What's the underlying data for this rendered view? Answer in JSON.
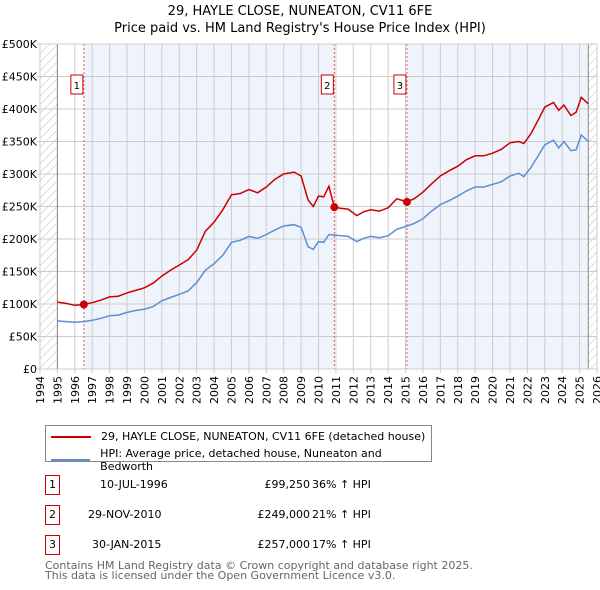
{
  "title": "29, HAYLE CLOSE, NUNEATON, CV11 6FE",
  "subtitle": "Price paid vs. HM Land Registry's House Price Index (HPI)",
  "legend": {
    "property": "29, HAYLE CLOSE, NUNEATON, CV11 6FE (detached house)",
    "hpi": "HPI: Average price, detached house, Nuneaton and Bedworth"
  },
  "sales": [
    {
      "num": "1",
      "date": "10-JUL-1996",
      "price": "£99,250",
      "hpi": "36% ↑ HPI"
    },
    {
      "num": "2",
      "date": "29-NOV-2010",
      "price": "£249,000",
      "hpi": "21% ↑ HPI"
    },
    {
      "num": "3",
      "date": "30-JAN-2015",
      "price": "£257,000",
      "hpi": "17% ↑ HPI"
    }
  ],
  "footer": {
    "line1": "Contains HM Land Registry data © Crown copyright and database right 2025.",
    "line2": "This data is licensed under the Open Government Licence v3.0."
  },
  "chart_data": {
    "type": "line",
    "xlim": [
      1994,
      2026
    ],
    "ylim": [
      0,
      500000
    ],
    "x_ticks": [
      "1994",
      "1995",
      "1996",
      "1997",
      "1998",
      "1999",
      "2000",
      "2001",
      "2002",
      "2003",
      "2004",
      "2005",
      "2006",
      "2007",
      "2008",
      "2009",
      "2010",
      "2011",
      "2012",
      "2013",
      "2014",
      "2015",
      "2016",
      "2017",
      "2018",
      "2019",
      "2020",
      "2021",
      "2022",
      "2023",
      "2024",
      "2025",
      "2026"
    ],
    "y_ticks": [
      {
        "v": 0,
        "label": "£0"
      },
      {
        "v": 50000,
        "label": "£50K"
      },
      {
        "v": 100000,
        "label": "£100K"
      },
      {
        "v": 150000,
        "label": "£150K"
      },
      {
        "v": 200000,
        "label": "£200K"
      },
      {
        "v": 250000,
        "label": "£250K"
      },
      {
        "v": 300000,
        "label": "£300K"
      },
      {
        "v": 350000,
        "label": "£350K"
      },
      {
        "v": 400000,
        "label": "£400K"
      },
      {
        "v": 450000,
        "label": "£450K"
      },
      {
        "v": 500000,
        "label": "£500K"
      }
    ],
    "data_range": [
      1995,
      2025.5
    ],
    "sale_markers": [
      {
        "label": "1",
        "x": 1996.52,
        "y": 99250
      },
      {
        "label": "2",
        "x": 2010.91,
        "y": 249000
      },
      {
        "label": "3",
        "x": 2015.08,
        "y": 257000
      }
    ],
    "series": [
      {
        "name": "29, HAYLE CLOSE, NUNEATON, CV11 6FE (detached house)",
        "color": "#cc0000",
        "x": [
          1995,
          1995.5,
          1996,
          1996.52,
          1997,
          1997.5,
          1998,
          1998.5,
          1999,
          1999.5,
          2000,
          2000.5,
          2001,
          2001.5,
          2002,
          2002.5,
          2003,
          2003.5,
          2004,
          2004.5,
          2005,
          2005.5,
          2006,
          2006.5,
          2007,
          2007.5,
          2008,
          2008.6,
          2009,
          2009.4,
          2009.7,
          2010,
          2010.3,
          2010.6,
          2010.91,
          2011.3,
          2011.7,
          2012.2,
          2012.6,
          2013,
          2013.5,
          2014,
          2014.5,
          2015.08,
          2015.5,
          2016,
          2016.5,
          2017,
          2017.5,
          2018,
          2018.5,
          2019,
          2019.5,
          2020,
          2020.5,
          2021,
          2021.5,
          2021.8,
          2022.2,
          2022.6,
          2023,
          2023.5,
          2023.8,
          2024.1,
          2024.5,
          2024.8,
          2025.1,
          2025.5
        ],
        "y": [
          103000,
          101000,
          98000,
          99250,
          102000,
          106000,
          111000,
          112000,
          117000,
          121000,
          125000,
          132000,
          143000,
          152000,
          160000,
          168000,
          183000,
          212000,
          226000,
          245000,
          268000,
          270000,
          276000,
          271000,
          280000,
          292000,
          300000,
          303000,
          297000,
          260000,
          250000,
          266000,
          265000,
          281000,
          249000,
          247000,
          246000,
          236000,
          242000,
          245000,
          243000,
          248000,
          262000,
          257000,
          262000,
          272000,
          285000,
          297000,
          305000,
          312000,
          322000,
          328000,
          328000,
          332000,
          338000,
          348000,
          350000,
          347000,
          362000,
          382000,
          403000,
          410000,
          398000,
          406000,
          390000,
          395000,
          418000,
          408000
        ]
      },
      {
        "name": "HPI: Average price, detached house, Nuneaton and Bedworth",
        "color": "#5b8fd4",
        "x": [
          1995,
          1995.5,
          1996,
          1996.52,
          1997,
          1997.5,
          1998,
          1998.5,
          1999,
          1999.5,
          2000,
          2000.5,
          2001,
          2001.5,
          2002,
          2002.5,
          2003,
          2003.5,
          2004,
          2004.5,
          2005,
          2005.5,
          2006,
          2006.5,
          2007,
          2007.5,
          2008,
          2008.6,
          2009,
          2009.4,
          2009.7,
          2010,
          2010.3,
          2010.6,
          2010.91,
          2011.3,
          2011.7,
          2012.2,
          2012.6,
          2013,
          2013.5,
          2014,
          2014.5,
          2015.08,
          2015.5,
          2016,
          2016.5,
          2017,
          2017.5,
          2018,
          2018.5,
          2019,
          2019.5,
          2020,
          2020.5,
          2021,
          2021.5,
          2021.8,
          2022.2,
          2022.6,
          2023,
          2023.5,
          2023.8,
          2024.1,
          2024.5,
          2024.8,
          2025.1,
          2025.5
        ],
        "y": [
          74000,
          73000,
          72000,
          73000,
          75000,
          78000,
          82000,
          83000,
          87000,
          90000,
          92000,
          96000,
          105000,
          110000,
          115000,
          120000,
          133000,
          152000,
          162000,
          175000,
          195000,
          198000,
          204000,
          201000,
          207000,
          214000,
          220000,
          222000,
          218000,
          188000,
          184000,
          196000,
          195000,
          207000,
          206000,
          205000,
          204000,
          196000,
          201000,
          204000,
          202000,
          205000,
          215000,
          220000,
          224000,
          231000,
          243000,
          253000,
          259000,
          266000,
          274000,
          280000,
          280000,
          284000,
          288000,
          297000,
          301000,
          296000,
          310000,
          327000,
          345000,
          352000,
          340000,
          350000,
          336000,
          337000,
          360000,
          350000
        ]
      }
    ]
  }
}
